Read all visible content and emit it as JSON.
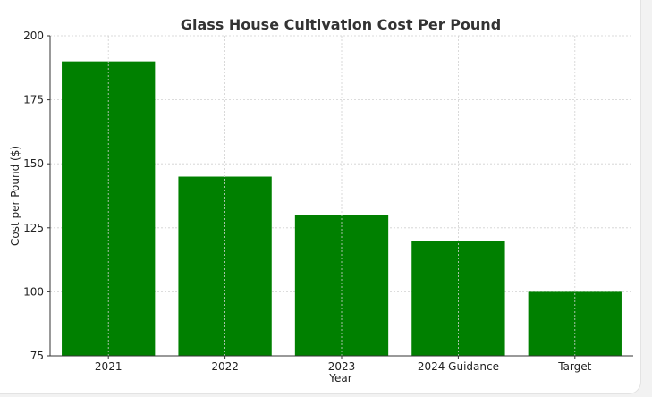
{
  "chart_data": {
    "type": "bar",
    "title": "Glass House Cultivation Cost Per Pound",
    "xlabel": "Year",
    "ylabel": "Cost per Pound ($)",
    "categories": [
      "2021",
      "2022",
      "2023",
      "2024 Guidance",
      "Target"
    ],
    "values": [
      190,
      145,
      130,
      120,
      100
    ],
    "ylim": [
      75,
      200
    ],
    "yticks": [
      "75",
      "100",
      "125",
      "150",
      "175",
      "200"
    ],
    "bar_color": "#008000",
    "grid": true,
    "legend": "none"
  }
}
